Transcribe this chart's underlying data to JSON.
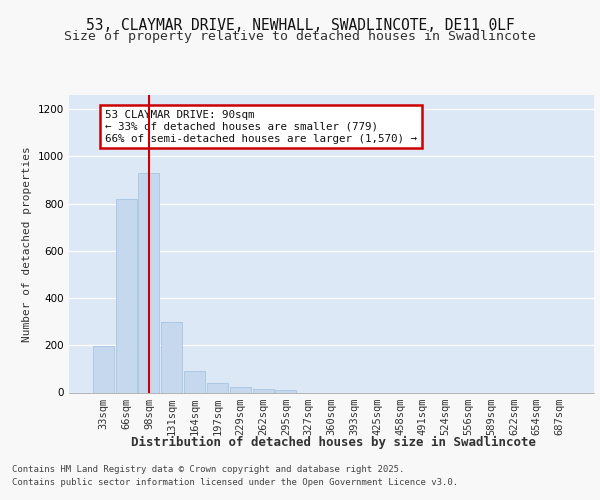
{
  "title1": "53, CLAYMAR DRIVE, NEWHALL, SWADLINCOTE, DE11 0LF",
  "title2": "Size of property relative to detached houses in Swadlincote",
  "xlabel": "Distribution of detached houses by size in Swadlincote",
  "ylabel": "Number of detached properties",
  "categories": [
    "33sqm",
    "66sqm",
    "98sqm",
    "131sqm",
    "164sqm",
    "197sqm",
    "229sqm",
    "262sqm",
    "295sqm",
    "327sqm",
    "360sqm",
    "393sqm",
    "425sqm",
    "458sqm",
    "491sqm",
    "524sqm",
    "556sqm",
    "589sqm",
    "622sqm",
    "654sqm",
    "687sqm"
  ],
  "values": [
    198,
    820,
    930,
    300,
    90,
    40,
    25,
    15,
    10,
    0,
    0,
    0,
    0,
    0,
    0,
    0,
    0,
    0,
    0,
    0,
    0
  ],
  "bar_color": "#c5d8ed",
  "bar_edge_color": "#a0c0e0",
  "vline_color": "#cc0000",
  "vline_x": 2.0,
  "annotation_text": "53 CLAYMAR DRIVE: 90sqm\n← 33% of detached houses are smaller (779)\n66% of semi-detached houses are larger (1,570) →",
  "annotation_box_edge_color": "#cc0000",
  "plot_bg_color": "#dce8f5",
  "fig_bg_color": "#f8f8f8",
  "grid_color": "#ffffff",
  "ylim_max": 1260,
  "yticks": [
    0,
    200,
    400,
    600,
    800,
    1000,
    1200
  ],
  "footer1": "Contains HM Land Registry data © Crown copyright and database right 2025.",
  "footer2": "Contains public sector information licensed under the Open Government Licence v3.0.",
  "title_fontsize": 10.5,
  "subtitle_fontsize": 9.5,
  "ylabel_fontsize": 8.0,
  "xlabel_fontsize": 9.0,
  "tick_fontsize": 7.5,
  "ann_fontsize": 7.8,
  "footer_fontsize": 6.5
}
